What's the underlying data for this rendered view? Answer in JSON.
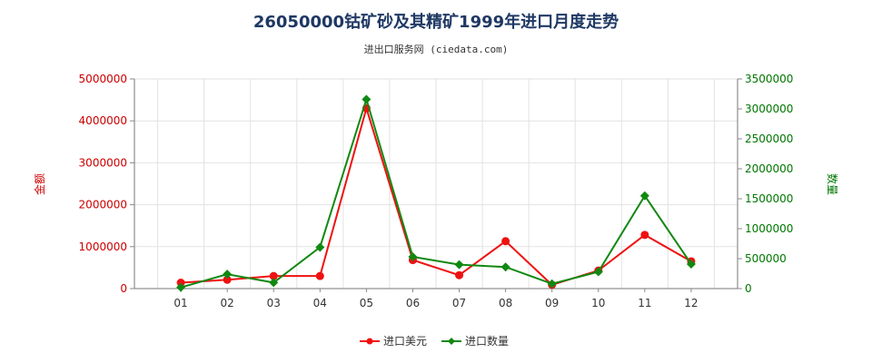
{
  "chart_data": {
    "type": "line",
    "title": "26050000钴矿砂及其精矿1999年进口月度走势",
    "subtitle": "进出口服务网 (ciedata.com)",
    "categories": [
      "01",
      "02",
      "03",
      "04",
      "05",
      "06",
      "07",
      "08",
      "09",
      "10",
      "11",
      "12"
    ],
    "y_left": {
      "label": "金额",
      "ylim": [
        0,
        5000000
      ],
      "ticks": [
        "0",
        "1000000",
        "2000000",
        "3000000",
        "4000000",
        "5000000"
      ],
      "color": "#ee1111"
    },
    "y_right": {
      "label": "数量",
      "ylim": [
        0,
        3500000
      ],
      "ticks": [
        "0",
        "500000",
        "1000000",
        "1500000",
        "2000000",
        "2500000",
        "3000000",
        "3500000"
      ],
      "color": "#118811"
    },
    "series": [
      {
        "name": "进口美元",
        "axis": "left",
        "color": "#ee1111",
        "marker": "circle",
        "values": [
          140000,
          210000,
          300000,
          300000,
          4300000,
          680000,
          320000,
          1130000,
          90000,
          430000,
          1280000,
          650000
        ]
      },
      {
        "name": "进口数量",
        "axis": "right",
        "color": "#118811",
        "marker": "diamond",
        "values": [
          20000,
          240000,
          100000,
          690000,
          3160000,
          530000,
          400000,
          360000,
          80000,
          280000,
          1550000,
          410000
        ]
      }
    ],
    "grid": true,
    "legend_position": "bottom-center"
  }
}
